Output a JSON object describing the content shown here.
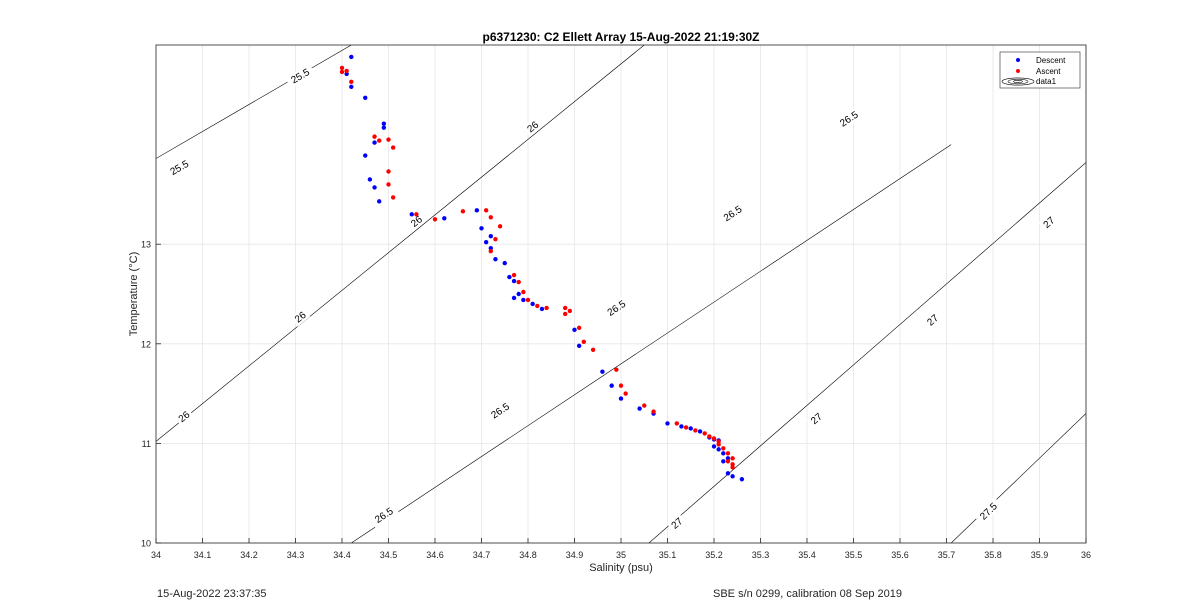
{
  "chart_data": {
    "type": "scatter",
    "title": "p6371230: C2 Ellett Array 15-Aug-2022 21:19:30Z",
    "xlabel": "Salinity (psu)",
    "ylabel": "Temperature (°C)",
    "xlim": [
      34,
      36
    ],
    "ylim": [
      10,
      15
    ],
    "xticks": [
      "34",
      "34.1",
      "34.2",
      "34.3",
      "34.4",
      "34.5",
      "34.6",
      "34.7",
      "34.8",
      "34.9",
      "35",
      "35.1",
      "35.2",
      "35.3",
      "35.4",
      "35.5",
      "35.6",
      "35.7",
      "35.8",
      "35.9",
      "36"
    ],
    "yticks": [
      "10",
      "11",
      "12",
      "13"
    ],
    "grid": true,
    "legend_position": "top-right",
    "legend": [
      "Descent",
      "Ascent",
      "data1"
    ],
    "colors": {
      "descent": "#0000ff",
      "ascent": "#ff0000",
      "contour": "#000000",
      "grid": "#e6e6e6"
    },
    "contours": [
      {
        "label": "25.5",
        "points": [
          [
            34.0,
            13.86
          ],
          [
            34.42,
            15.0
          ]
        ]
      },
      {
        "label": "26",
        "points": [
          [
            34.0,
            11.02
          ],
          [
            35.05,
            15.0
          ]
        ]
      },
      {
        "label": "26.5",
        "points": [
          [
            34.42,
            10.0
          ],
          [
            35.71,
            14.0
          ]
        ]
      },
      {
        "label": "27",
        "points": [
          [
            35.06,
            10.0
          ],
          [
            36.0,
            13.82
          ]
        ]
      },
      {
        "label": "27.5",
        "points": [
          [
            35.71,
            10.0
          ],
          [
            36.0,
            11.3
          ]
        ]
      }
    ],
    "contour_labels": [
      {
        "text": "25.5",
        "x": 34.31,
        "y": 14.69
      },
      {
        "text": "25.5",
        "x": 34.05,
        "y": 13.77
      },
      {
        "text": "26",
        "x": 34.81,
        "y": 14.18
      },
      {
        "text": "26",
        "x": 34.56,
        "y": 13.23
      },
      {
        "text": "26",
        "x": 34.31,
        "y": 12.27
      },
      {
        "text": "26",
        "x": 34.06,
        "y": 11.27
      },
      {
        "text": "26.5",
        "x": 35.49,
        "y": 14.26
      },
      {
        "text": "26.5",
        "x": 35.24,
        "y": 13.31
      },
      {
        "text": "26.5",
        "x": 34.99,
        "y": 12.36
      },
      {
        "text": "26.5",
        "x": 34.74,
        "y": 11.33
      },
      {
        "text": "26.5",
        "x": 34.49,
        "y": 10.28
      },
      {
        "text": "27",
        "x": 35.92,
        "y": 13.22
      },
      {
        "text": "27",
        "x": 35.67,
        "y": 12.24
      },
      {
        "text": "27",
        "x": 35.42,
        "y": 11.25
      },
      {
        "text": "27",
        "x": 35.12,
        "y": 10.2
      },
      {
        "text": "27.5",
        "x": 35.79,
        "y": 10.32
      }
    ],
    "series": [
      {
        "name": "Descent",
        "points": [
          [
            34.42,
            14.88
          ],
          [
            34.41,
            14.71
          ],
          [
            34.42,
            14.58
          ],
          [
            34.45,
            14.47
          ],
          [
            34.49,
            14.21
          ],
          [
            34.49,
            14.17
          ],
          [
            34.47,
            14.02
          ],
          [
            34.45,
            13.89
          ],
          [
            34.46,
            13.65
          ],
          [
            34.47,
            13.57
          ],
          [
            34.48,
            13.43
          ],
          [
            34.55,
            13.3
          ],
          [
            34.62,
            13.26
          ],
          [
            34.69,
            13.34
          ],
          [
            34.7,
            13.16
          ],
          [
            34.72,
            13.08
          ],
          [
            34.71,
            13.02
          ],
          [
            34.72,
            12.96
          ],
          [
            34.73,
            12.85
          ],
          [
            34.75,
            12.81
          ],
          [
            34.76,
            12.67
          ],
          [
            34.77,
            12.63
          ],
          [
            34.78,
            12.5
          ],
          [
            34.77,
            12.46
          ],
          [
            34.79,
            12.44
          ],
          [
            34.81,
            12.4
          ],
          [
            34.83,
            12.35
          ],
          [
            34.9,
            12.14
          ],
          [
            34.91,
            11.98
          ],
          [
            34.96,
            11.72
          ],
          [
            34.98,
            11.58
          ],
          [
            35.0,
            11.45
          ],
          [
            35.04,
            11.35
          ],
          [
            35.07,
            11.3
          ],
          [
            35.1,
            11.2
          ],
          [
            35.13,
            11.17
          ],
          [
            35.15,
            11.15
          ],
          [
            35.17,
            11.12
          ],
          [
            35.19,
            11.06
          ],
          [
            35.2,
            11.04
          ],
          [
            35.21,
            11.03
          ],
          [
            35.2,
            10.97
          ],
          [
            35.21,
            10.94
          ],
          [
            35.22,
            10.9
          ],
          [
            35.23,
            10.85
          ],
          [
            35.22,
            10.82
          ],
          [
            35.23,
            10.7
          ],
          [
            35.24,
            10.67
          ],
          [
            35.26,
            10.64
          ]
        ]
      },
      {
        "name": "Ascent",
        "points": [
          [
            34.4,
            14.77
          ],
          [
            34.41,
            14.74
          ],
          [
            34.4,
            14.73
          ],
          [
            34.42,
            14.63
          ],
          [
            34.47,
            14.08
          ],
          [
            34.48,
            14.04
          ],
          [
            34.5,
            14.05
          ],
          [
            34.51,
            13.97
          ],
          [
            34.5,
            13.73
          ],
          [
            34.5,
            13.6
          ],
          [
            34.51,
            13.47
          ],
          [
            34.56,
            13.3
          ],
          [
            34.6,
            13.25
          ],
          [
            34.66,
            13.33
          ],
          [
            34.71,
            13.34
          ],
          [
            34.72,
            13.27
          ],
          [
            34.74,
            13.18
          ],
          [
            34.73,
            13.05
          ],
          [
            34.72,
            12.93
          ],
          [
            34.77,
            12.69
          ],
          [
            34.78,
            12.62
          ],
          [
            34.79,
            12.52
          ],
          [
            34.8,
            12.44
          ],
          [
            34.82,
            12.38
          ],
          [
            34.84,
            12.36
          ],
          [
            34.88,
            12.36
          ],
          [
            34.89,
            12.33
          ],
          [
            34.88,
            12.3
          ],
          [
            34.91,
            12.16
          ],
          [
            34.92,
            12.02
          ],
          [
            34.94,
            11.94
          ],
          [
            34.99,
            11.74
          ],
          [
            35.0,
            11.58
          ],
          [
            35.01,
            11.5
          ],
          [
            35.05,
            11.38
          ],
          [
            35.07,
            11.32
          ],
          [
            35.12,
            11.2
          ],
          [
            35.14,
            11.16
          ],
          [
            35.16,
            11.13
          ],
          [
            35.18,
            11.1
          ],
          [
            35.19,
            11.07
          ],
          [
            35.2,
            11.05
          ],
          [
            35.21,
            11.02
          ],
          [
            35.21,
            10.99
          ],
          [
            35.22,
            10.95
          ],
          [
            35.23,
            10.9
          ],
          [
            35.24,
            10.85
          ],
          [
            35.23,
            10.82
          ],
          [
            35.24,
            10.79
          ],
          [
            35.24,
            10.76
          ]
        ]
      }
    ]
  },
  "footer": {
    "left": "15-Aug-2022 23:37:35",
    "right": "SBE s/n 0299, calibration 08 Sep 2019"
  }
}
